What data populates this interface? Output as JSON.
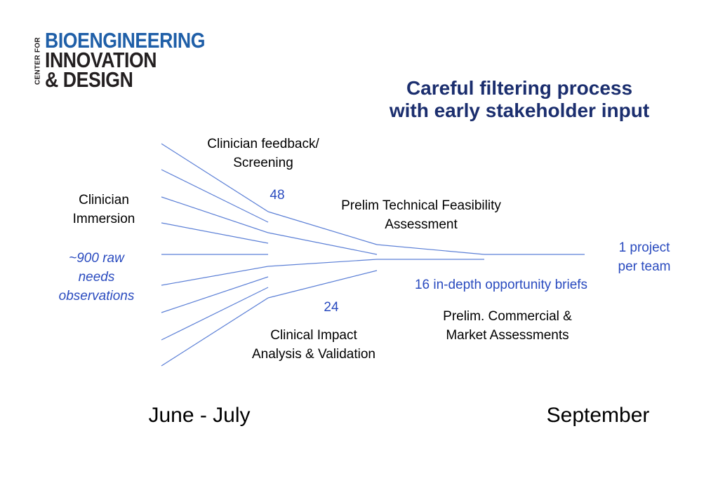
{
  "logo": {
    "side": "CENTER FOR",
    "line1": "BIOENGINEERING",
    "line2": "INNOVATION",
    "line3": "& DESIGN"
  },
  "title": {
    "line1": "Careful filtering process",
    "line2": "with early stakeholder input"
  },
  "labels": {
    "immersion_1": "Clinician",
    "immersion_2": "Immersion",
    "raw_1": "~900 raw",
    "raw_2": "needs",
    "raw_3": "observations",
    "feedback_1": "Clinician feedback/",
    "feedback_2": "Screening",
    "count_48": "48",
    "technical_1": "Prelim Technical Feasibility",
    "technical_2": "Assessment",
    "one_project_1": "1 project",
    "one_project_2": "per team",
    "briefs": "16 in-depth opportunity briefs",
    "count_24": "24",
    "commercial_1": "Prelim. Commercial &",
    "commercial_2": "Market Assessments",
    "impact_1": "Clinical Impact",
    "impact_2": "Analysis & Validation",
    "start_period": "June - July",
    "end_period": "September"
  },
  "colors": {
    "line": "#5b7fd6",
    "accent": "#2a4bbf",
    "title": "#1b2e6e",
    "logo_blue": "#1f5fa8"
  }
}
